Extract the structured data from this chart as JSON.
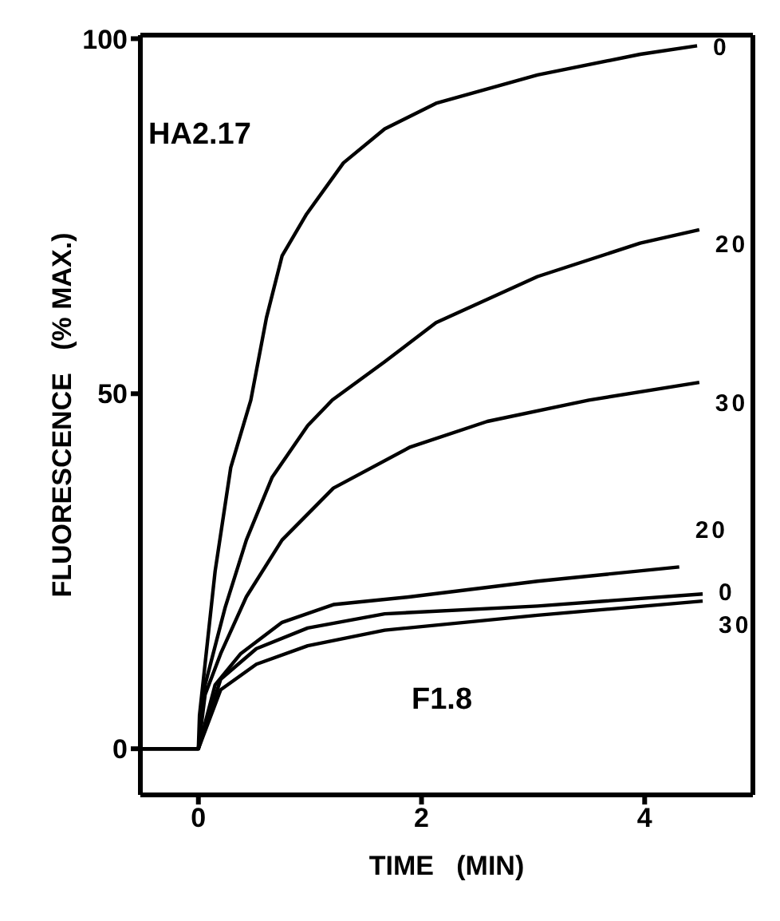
{
  "chart_data": {
    "type": "line",
    "xlabel": "TIME   (MIN)",
    "ylabel": "FLUORESCENCE   (% MAX.)",
    "xlim": [
      -0.52,
      4.97
    ],
    "xticks": [
      0,
      2,
      4
    ],
    "ylim": [
      -6.5,
      100.5
    ],
    "yticks": [
      0,
      50,
      100
    ],
    "marker": "none",
    "line_style": "solid",
    "annotations": [
      {
        "text": "HA2.17"
      },
      {
        "text": "F1.8"
      }
    ],
    "series": [
      {
        "name": "0",
        "color": "#000000",
        "x": [
          -0.5,
          0,
          0.01,
          0.15,
          0.29,
          0.47,
          0.61,
          0.75,
          0.97,
          1.3,
          1.67,
          2.13,
          3.04,
          3.96,
          4.47
        ],
        "values": [
          0,
          0,
          4.7,
          25,
          39.6,
          49.1,
          60.7,
          69.4,
          75.3,
          82.5,
          87.3,
          90.9,
          94.9,
          97.8,
          99
        ]
      },
      {
        "name": "20",
        "color": "#000000",
        "x": [
          -0.5,
          0,
          0.06,
          0.24,
          0.43,
          0.66,
          0.98,
          1.2,
          1.67,
          2.13,
          3.04,
          3.96,
          4.49
        ],
        "values": [
          0,
          0,
          9,
          19.9,
          29.4,
          38.2,
          45.5,
          49.1,
          54.5,
          60,
          66.5,
          71.2,
          73.1
        ]
      },
      {
        "name": "30",
        "color": "#000000",
        "x": [
          -0.5,
          0,
          0.06,
          0.2,
          0.43,
          0.75,
          1.21,
          1.9,
          2.59,
          3.5,
          4.49
        ],
        "values": [
          0,
          0,
          7.6,
          13.4,
          21.4,
          29.4,
          36.7,
          42.5,
          46.1,
          49.1,
          51.6
        ]
      },
      {
        "name": "20",
        "color": "#000000",
        "x": [
          -0.5,
          0,
          0.15,
          0.38,
          0.75,
          1.21,
          1.9,
          3.04,
          4.31
        ],
        "values": [
          0,
          0,
          9,
          13.4,
          17.8,
          20.3,
          21.4,
          23.6,
          25.6
        ]
      },
      {
        "name": "0",
        "color": "#000000",
        "x": [
          -0.5,
          0,
          0.2,
          0.52,
          0.98,
          1.67,
          3.04,
          4.52
        ],
        "values": [
          0,
          0,
          9.8,
          14.1,
          17,
          19,
          20.1,
          21.8
        ]
      },
      {
        "name": "30",
        "color": "#000000",
        "x": [
          -0.5,
          0,
          0.2,
          0.52,
          0.98,
          1.67,
          3.04,
          4.52
        ],
        "values": [
          0,
          0,
          8.3,
          11.9,
          14.5,
          16.7,
          18.8,
          20.8
        ]
      }
    ]
  }
}
